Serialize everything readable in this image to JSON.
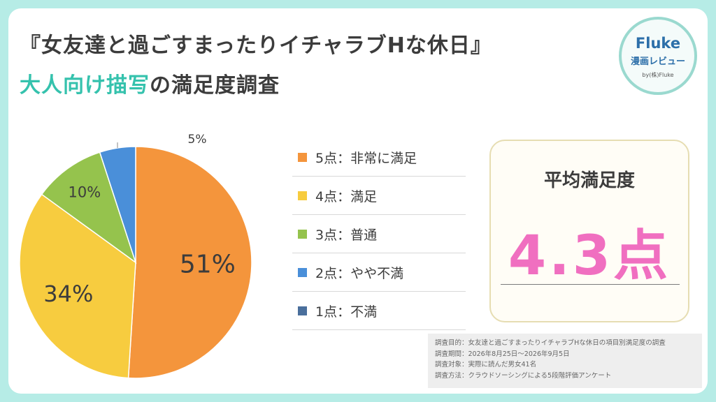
{
  "header": {
    "title_line1": "『女友達と過ごすまったりイチャラブHな休日』",
    "title_line2_highlight": "大人向け描写",
    "title_line2_rest": "の満足度調査"
  },
  "logo": {
    "name": "Fluke",
    "subtitle": "漫画レビュー",
    "byline": "by(株)Fluke"
  },
  "chart_data": {
    "type": "pie",
    "categories": [
      "5点：非常に満足",
      "4点：満足",
      "3点：普通",
      "2点：やや不満",
      "1点：不満"
    ],
    "values": [
      51,
      34,
      10,
      5,
      0
    ],
    "value_labels": [
      "51%",
      "34%",
      "10%",
      "5%",
      ""
    ],
    "colors": [
      "#f4953c",
      "#f7cc3f",
      "#95c34d",
      "#4a8fd9",
      "#4a6f9c"
    ],
    "legend_placement": "right"
  },
  "average": {
    "title": "平均満足度",
    "value": "4.3点"
  },
  "survey_notes": [
    "調査目的：女友達と過ごすまったりイチャラブHな休日の項目別満足度の調査",
    "調査期間：2026年8月25日～2026年9月5日",
    "調査対象：実際に読んだ男女41名",
    "調査方法：クラウドソーシングによる5段階評価アンケート"
  ]
}
